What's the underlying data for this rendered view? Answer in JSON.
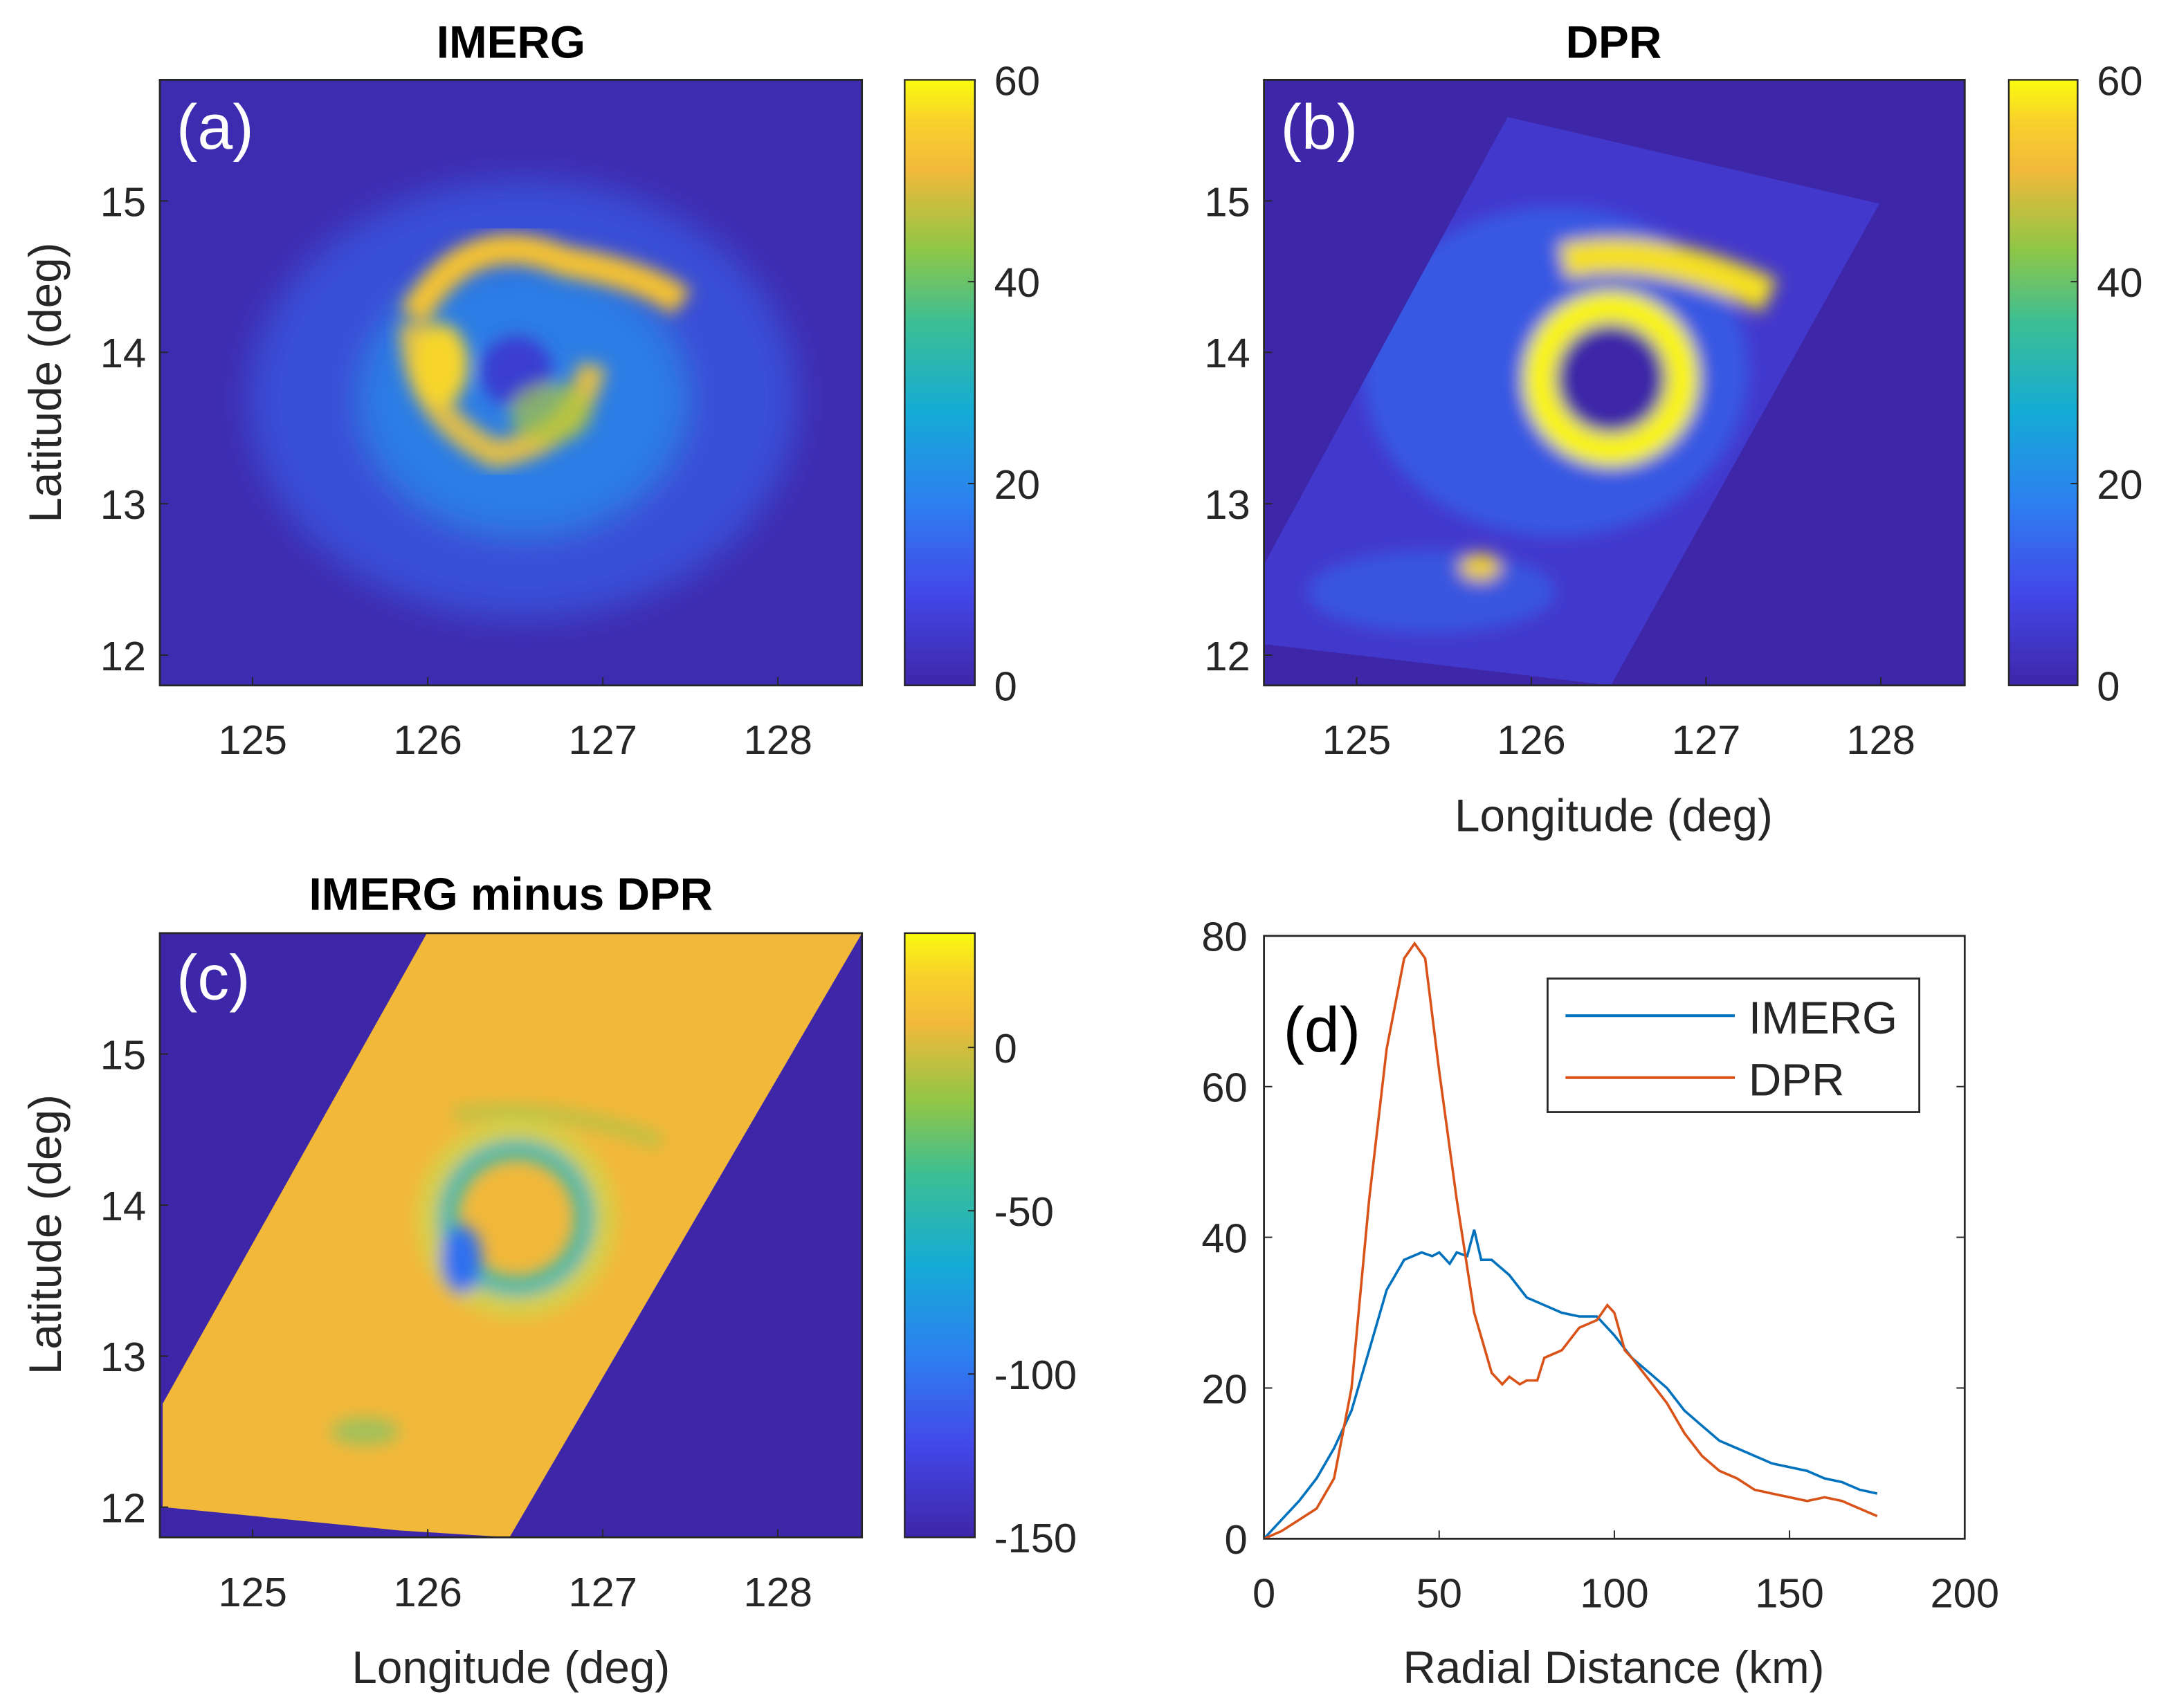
{
  "chart_data": [
    {
      "type": "heatmap",
      "panel": "(a)",
      "title": "IMERG",
      "xlabel": "",
      "ylabel": "Latitude (deg)",
      "xticks": [
        "125",
        "126",
        "127",
        "128"
      ],
      "yticks": [
        "15",
        "14",
        "13",
        "12"
      ],
      "xlim": [
        124.47,
        128.48
      ],
      "ylim": [
        11.8,
        15.8
      ],
      "colorbar": {
        "ticks": [
          "60",
          "40",
          "20",
          "0"
        ],
        "clim": [
          0,
          60
        ]
      }
    },
    {
      "type": "heatmap",
      "panel": "(b)",
      "title": "DPR",
      "xlabel": "Longitude (deg)",
      "ylabel": "",
      "xticks": [
        "125",
        "126",
        "127",
        "128"
      ],
      "yticks": [
        "15",
        "14",
        "13",
        "12"
      ],
      "xlim": [
        124.47,
        128.48
      ],
      "ylim": [
        11.8,
        15.8
      ],
      "colorbar": {
        "ticks": [
          "60",
          "40",
          "20",
          "0"
        ],
        "clim": [
          0,
          60
        ]
      }
    },
    {
      "type": "heatmap",
      "panel": "(c)",
      "title": "IMERG minus DPR",
      "xlabel": "Longitude (deg)",
      "ylabel": "Latitude (deg)",
      "xticks": [
        "125",
        "126",
        "127",
        "128"
      ],
      "yticks": [
        "15",
        "14",
        "13",
        "12"
      ],
      "xlim": [
        124.47,
        128.48
      ],
      "ylim": [
        11.8,
        15.8
      ],
      "colorbar": {
        "ticks": [
          "0",
          "-50",
          "-100",
          "-150"
        ],
        "clim": [
          -150,
          35
        ]
      }
    },
    {
      "type": "line",
      "panel": "(d)",
      "title": "",
      "xlabel": "Radial Distance (km)",
      "ylabel": "",
      "xlim": [
        0,
        200
      ],
      "ylim": [
        0,
        80
      ],
      "xticks": [
        "0",
        "50",
        "100",
        "150",
        "200"
      ],
      "yticks": [
        "0",
        "20",
        "40",
        "60",
        "80"
      ],
      "legend": "top-right",
      "series": [
        {
          "name": "IMERG",
          "color": "#0072bd",
          "x": [
            0,
            5,
            10,
            15,
            20,
            25,
            30,
            35,
            40,
            45,
            48,
            50,
            53,
            55,
            58,
            60,
            62,
            65,
            70,
            75,
            80,
            85,
            90,
            95,
            100,
            105,
            110,
            115,
            120,
            125,
            130,
            135,
            140,
            145,
            150,
            155,
            160,
            165,
            170,
            175
          ],
          "y": [
            0,
            2.5,
            5,
            8,
            12,
            17,
            25,
            33,
            37,
            38,
            37.5,
            38,
            36.5,
            38,
            37.5,
            41,
            37,
            37,
            35,
            32,
            31,
            30,
            29.5,
            29.5,
            27,
            24,
            22,
            20,
            17,
            15,
            13,
            12,
            11,
            10,
            9.5,
            9,
            8,
            7.5,
            6.5,
            6
          ]
        },
        {
          "name": "DPR",
          "color": "#d95319",
          "x": [
            0,
            5,
            10,
            15,
            20,
            25,
            30,
            35,
            40,
            43,
            46,
            50,
            55,
            60,
            65,
            68,
            70,
            73,
            75,
            78,
            80,
            85,
            90,
            95,
            98,
            100,
            103,
            105,
            110,
            115,
            120,
            125,
            130,
            135,
            140,
            145,
            150,
            155,
            160,
            165,
            170,
            175
          ],
          "y": [
            0,
            1,
            2.5,
            4,
            8,
            20,
            45,
            65,
            77,
            79,
            77,
            62,
            45,
            30,
            22,
            20.5,
            21.5,
            20.5,
            21,
            21,
            24,
            25,
            28,
            29,
            31,
            30,
            25,
            24,
            21,
            18,
            14,
            11,
            9,
            8,
            6.5,
            6,
            5.5,
            5,
            5.5,
            5,
            4,
            3
          ]
        }
      ]
    }
  ]
}
